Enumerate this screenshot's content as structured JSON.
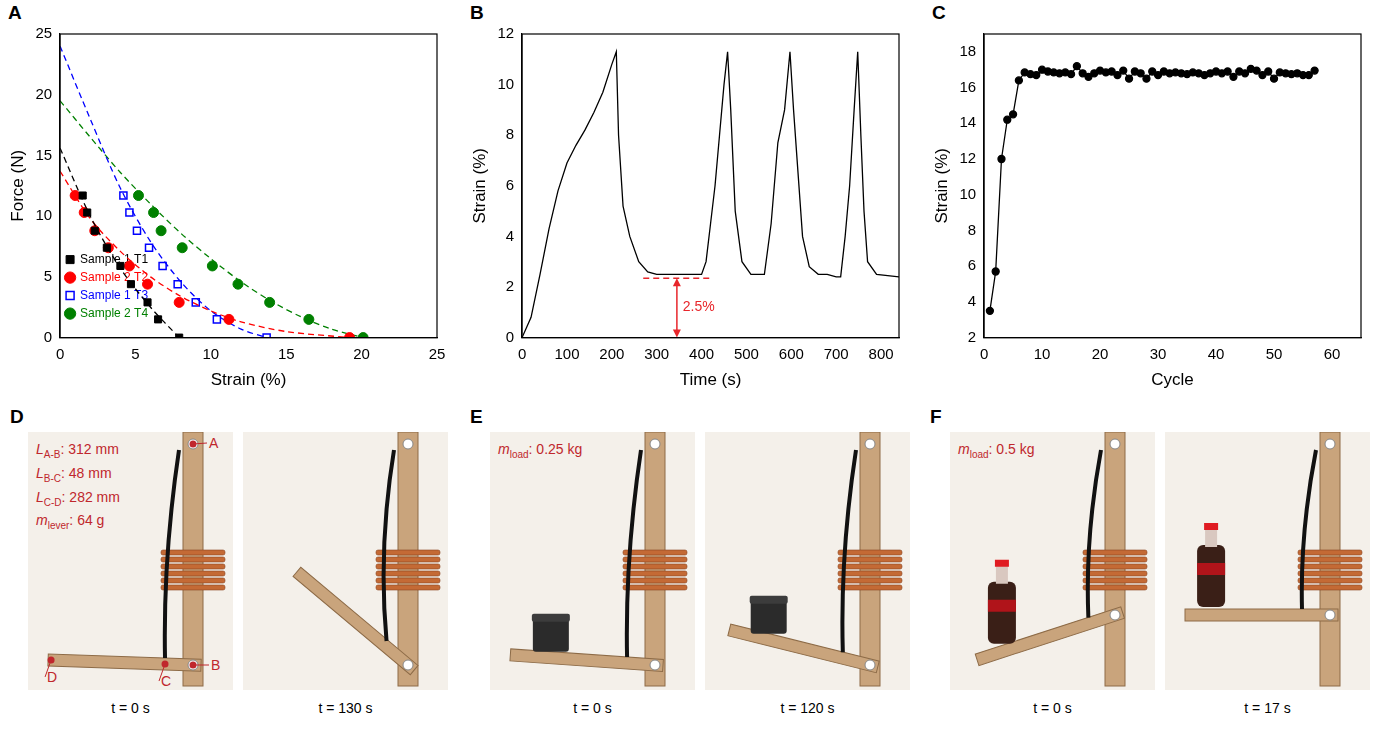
{
  "chart_data": [
    {
      "panel": "A",
      "type": "scatter",
      "x_label": "Strain (%)",
      "y_label": "Force (N)",
      "xlim": [
        0,
        25
      ],
      "xticks": [
        0,
        5,
        10,
        15,
        20,
        25
      ],
      "ylim": [
        0,
        25
      ],
      "yticks": [
        0,
        5,
        10,
        15,
        20,
        25
      ],
      "legend": "top-right",
      "series": [
        {
          "name": "Sample 1 T1",
          "color": "#000000",
          "marker": "square",
          "line_style": "dashed",
          "x": [
            1.5,
            1.8,
            2.3,
            3.1,
            4.0,
            4.7,
            5.8,
            6.5,
            7.9
          ],
          "values": [
            11.7,
            10.3,
            8.8,
            7.4,
            5.9,
            4.4,
            2.9,
            1.5,
            0
          ],
          "fit_x": [
            0,
            2,
            4,
            6,
            7.9
          ],
          "fit_values": [
            15.6,
            10.0,
            5.7,
            2.5,
            0
          ]
        },
        {
          "name": "Sample 2 T2",
          "color": "#ff0000",
          "marker": "circle",
          "line_style": "dashed",
          "x": [
            1.0,
            1.6,
            2.3,
            3.2,
            4.6,
            5.8,
            7.9,
            11.2,
            19.2
          ],
          "values": [
            11.7,
            10.3,
            8.8,
            7.4,
            5.9,
            4.4,
            2.9,
            1.5,
            0
          ],
          "fit_x": [
            0,
            2,
            4,
            6,
            8,
            10,
            12,
            15,
            19.2
          ],
          "fit_values": [
            13.7,
            9.8,
            7.1,
            5.0,
            3.4,
            2.2,
            1.3,
            0.5,
            0
          ]
        },
        {
          "name": "Sample 1 T3",
          "color": "#0000ff",
          "marker": "open square",
          "line_style": "dashed",
          "x": [
            4.2,
            4.6,
            5.1,
            5.9,
            6.8,
            7.8,
            9.0,
            10.4,
            13.7
          ],
          "values": [
            11.7,
            10.3,
            8.8,
            7.4,
            5.9,
            4.4,
            2.9,
            1.5,
            0
          ],
          "fit_x": [
            0,
            2,
            4,
            6,
            8,
            10,
            12,
            13.7
          ],
          "fit_values": [
            24.0,
            18.0,
            12.3,
            7.9,
            4.6,
            2.2,
            0.7,
            0
          ]
        },
        {
          "name": "Sample 2 T4",
          "color": "#008000",
          "marker": "circle",
          "line_style": "dashed",
          "x": [
            5.2,
            6.2,
            6.7,
            8.1,
            10.1,
            11.8,
            13.9,
            16.5,
            20.1
          ],
          "values": [
            11.7,
            10.3,
            8.8,
            7.4,
            5.9,
            4.4,
            2.9,
            1.5,
            0
          ],
          "fit_x": [
            0,
            2,
            4,
            6,
            8,
            10,
            12,
            14,
            16,
            18,
            20.1
          ],
          "fit_values": [
            19.5,
            16.5,
            13.6,
            11.0,
            8.6,
            6.5,
            4.6,
            3.0,
            1.7,
            0.7,
            0
          ]
        }
      ]
    },
    {
      "panel": "B",
      "type": "line",
      "x_label": "Time (s)",
      "y_label": "Strain (%)",
      "xlim": [
        0,
        840
      ],
      "xticks": [
        0,
        100,
        200,
        300,
        400,
        500,
        600,
        700,
        800
      ],
      "ylim": [
        0,
        12
      ],
      "yticks": [
        0,
        2,
        4,
        6,
        8,
        10,
        12
      ],
      "color": "#000000",
      "x": [
        0,
        20,
        40,
        60,
        80,
        100,
        120,
        140,
        160,
        180,
        200,
        210,
        215,
        225,
        240,
        260,
        280,
        300,
        320,
        340,
        360,
        380,
        400,
        410,
        420,
        430,
        440,
        450,
        458,
        465,
        475,
        490,
        510,
        540,
        555,
        570,
        585,
        597,
        605,
        615,
        625,
        640,
        660,
        680,
        700,
        710,
        720,
        730,
        740,
        748,
        755,
        762,
        770,
        790,
        840
      ],
      "values": [
        0,
        0.8,
        2.5,
        4.3,
        5.8,
        6.9,
        7.6,
        8.2,
        8.9,
        9.7,
        10.8,
        11.3,
        8.0,
        5.2,
        4.0,
        3.0,
        2.6,
        2.5,
        2.5,
        2.5,
        2.5,
        2.5,
        2.5,
        3.0,
        4.5,
        6.0,
        8.0,
        10.0,
        11.3,
        9.0,
        5.0,
        3.0,
        2.5,
        2.5,
        4.5,
        7.7,
        9.0,
        11.3,
        9.0,
        6.5,
        4.0,
        2.8,
        2.5,
        2.5,
        2.4,
        2.4,
        4.0,
        6.0,
        9.0,
        11.3,
        8.0,
        5.0,
        3.0,
        2.5,
        2.4
      ],
      "reference_line": {
        "y": 2.35,
        "x": [
          270,
          420
        ],
        "color": "#e8262b",
        "line_style": "dashed"
      },
      "arrow": {
        "x": 345,
        "y": [
          2.35,
          0
        ],
        "color": "#e8262b"
      },
      "annotations": [
        {
          "text": "2.5%",
          "x": 358,
          "y": 1.2,
          "color": "#e8262b"
        }
      ]
    },
    {
      "panel": "C",
      "type": "line",
      "marker": "circle",
      "x_label": "Cycle",
      "y_label": "Strain (%)",
      "xlim": [
        0,
        65
      ],
      "xticks": [
        0,
        10,
        20,
        30,
        40,
        50,
        60
      ],
      "ylim": [
        2,
        19
      ],
      "yticks": [
        2,
        4,
        6,
        8,
        10,
        12,
        14,
        16,
        18
      ],
      "color": "#000000",
      "x": [
        1,
        2,
        3,
        4,
        5,
        6,
        7,
        8,
        9,
        10,
        11,
        12,
        13,
        14,
        15,
        16,
        17,
        18,
        19,
        20,
        21,
        22,
        23,
        24,
        25,
        26,
        27,
        28,
        29,
        30,
        31,
        32,
        33,
        34,
        35,
        36,
        37,
        38,
        39,
        40,
        41,
        42,
        43,
        44,
        45,
        46,
        47,
        48,
        49,
        50,
        51,
        52,
        53,
        54,
        55,
        56,
        57
      ],
      "values": [
        3.5,
        5.7,
        12.0,
        14.2,
        14.5,
        16.4,
        16.85,
        16.75,
        16.7,
        17.0,
        16.9,
        16.85,
        16.8,
        16.85,
        16.75,
        17.2,
        16.8,
        16.6,
        16.8,
        16.95,
        16.85,
        16.9,
        16.7,
        16.95,
        16.5,
        16.9,
        16.8,
        16.5,
        16.9,
        16.7,
        16.9,
        16.8,
        16.85,
        16.8,
        16.75,
        16.85,
        16.8,
        16.7,
        16.8,
        16.9,
        16.8,
        16.9,
        16.6,
        16.9,
        16.8,
        17.05,
        16.95,
        16.7,
        16.9,
        16.5,
        16.85,
        16.8,
        16.75,
        16.8,
        16.7,
        16.7,
        16.95
      ]
    }
  ],
  "photos": [
    {
      "panel": "D",
      "parameters": [
        {
          "main": "L",
          "sub": "A-B",
          "rest": ": 312 mm"
        },
        {
          "main": "L",
          "sub": "B-C",
          "rest": ": 48 mm"
        },
        {
          "main": "L",
          "sub": "C-D",
          "rest": ": 282 mm"
        },
        {
          "main": "m",
          "sub": "lever",
          "rest": ": 64 g"
        }
      ],
      "points": [
        "A",
        "B",
        "C",
        "D"
      ],
      "frames": [
        {
          "caption": "t = 0 s"
        },
        {
          "caption": "t = 130 s"
        }
      ]
    },
    {
      "panel": "E",
      "parameters": [
        {
          "main": "m",
          "sub": "load",
          "rest": ": 0.25 kg"
        }
      ],
      "frames": [
        {
          "caption": "t = 0 s"
        },
        {
          "caption": "t = 120 s"
        }
      ]
    },
    {
      "panel": "F",
      "parameters": [
        {
          "main": "m",
          "sub": "load",
          "rest": ": 0.5 kg"
        }
      ],
      "frames": [
        {
          "caption": "t = 0 s"
        },
        {
          "caption": "t = 17 s"
        }
      ]
    }
  ]
}
